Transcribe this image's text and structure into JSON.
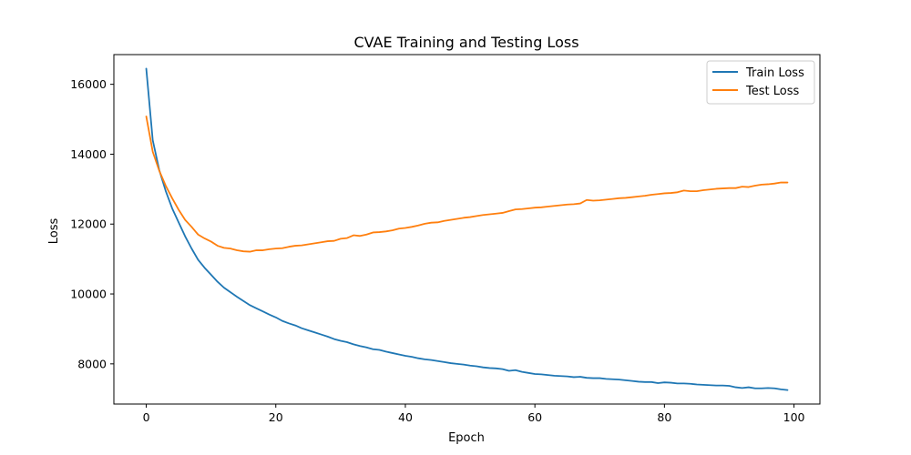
{
  "chart_data": {
    "type": "line",
    "title": "CVAE Training and Testing Loss",
    "xlabel": "Epoch",
    "ylabel": "Loss",
    "xlim": [
      -5,
      104
    ],
    "ylim": [
      6850,
      16850
    ],
    "xticks": [
      0,
      20,
      40,
      60,
      80,
      100
    ],
    "yticks": [
      8000,
      10000,
      12000,
      14000,
      16000
    ],
    "xtick_labels": [
      "0",
      "20",
      "40",
      "60",
      "80",
      "100"
    ],
    "ytick_labels": [
      "8000",
      "10000",
      "12000",
      "14000",
      "16000"
    ],
    "grid": false,
    "legend_position": "top-right",
    "x": [
      0,
      1,
      2,
      3,
      4,
      5,
      6,
      7,
      8,
      9,
      10,
      11,
      12,
      13,
      14,
      15,
      16,
      17,
      18,
      19,
      20,
      21,
      22,
      23,
      24,
      25,
      26,
      27,
      28,
      29,
      30,
      31,
      32,
      33,
      34,
      35,
      36,
      37,
      38,
      39,
      40,
      41,
      42,
      43,
      44,
      45,
      46,
      47,
      48,
      49,
      50,
      51,
      52,
      53,
      54,
      55,
      56,
      57,
      58,
      59,
      60,
      61,
      62,
      63,
      64,
      65,
      66,
      67,
      68,
      69,
      70,
      71,
      72,
      73,
      74,
      75,
      76,
      77,
      78,
      79,
      80,
      81,
      82,
      83,
      84,
      85,
      86,
      87,
      88,
      89,
      90,
      91,
      92,
      93,
      94,
      95,
      96,
      97,
      98,
      99
    ],
    "series": [
      {
        "name": "Train Loss",
        "color": "#1f77b4",
        "values": [
          16450,
          14400,
          13550,
          12950,
          12450,
          12050,
          11650,
          11300,
          10980,
          10750,
          10550,
          10350,
          10180,
          10050,
          9920,
          9800,
          9680,
          9590,
          9500,
          9410,
          9330,
          9230,
          9160,
          9100,
          9020,
          8960,
          8900,
          8840,
          8780,
          8710,
          8660,
          8620,
          8560,
          8510,
          8470,
          8420,
          8400,
          8350,
          8310,
          8270,
          8230,
          8200,
          8160,
          8130,
          8110,
          8080,
          8050,
          8020,
          8000,
          7980,
          7950,
          7930,
          7900,
          7880,
          7870,
          7850,
          7800,
          7820,
          7770,
          7740,
          7710,
          7700,
          7680,
          7660,
          7650,
          7640,
          7620,
          7630,
          7600,
          7590,
          7590,
          7570,
          7560,
          7550,
          7530,
          7510,
          7490,
          7480,
          7480,
          7450,
          7470,
          7460,
          7440,
          7440,
          7430,
          7410,
          7400,
          7390,
          7380,
          7380,
          7370,
          7330,
          7310,
          7330,
          7300,
          7300,
          7310,
          7300,
          7270,
          7250
        ]
      },
      {
        "name": "Test Loss",
        "color": "#ff7f0e",
        "values": [
          15080,
          14070,
          13530,
          13100,
          12740,
          12410,
          12120,
          11920,
          11700,
          11590,
          11500,
          11380,
          11320,
          11300,
          11250,
          11220,
          11210,
          11250,
          11250,
          11280,
          11300,
          11310,
          11350,
          11380,
          11390,
          11420,
          11450,
          11480,
          11510,
          11520,
          11580,
          11600,
          11680,
          11660,
          11700,
          11760,
          11770,
          11790,
          11820,
          11870,
          11890,
          11920,
          11960,
          12010,
          12040,
          12050,
          12090,
          12120,
          12150,
          12180,
          12200,
          12230,
          12260,
          12280,
          12300,
          12320,
          12370,
          12420,
          12430,
          12450,
          12470,
          12480,
          12500,
          12520,
          12540,
          12560,
          12570,
          12590,
          12690,
          12670,
          12680,
          12700,
          12720,
          12740,
          12750,
          12770,
          12790,
          12810,
          12840,
          12860,
          12880,
          12890,
          12910,
          12960,
          12940,
          12940,
          12970,
          12990,
          13010,
          13020,
          13030,
          13030,
          13070,
          13060,
          13100,
          13130,
          13140,
          13160,
          13190,
          13190
        ]
      }
    ]
  }
}
